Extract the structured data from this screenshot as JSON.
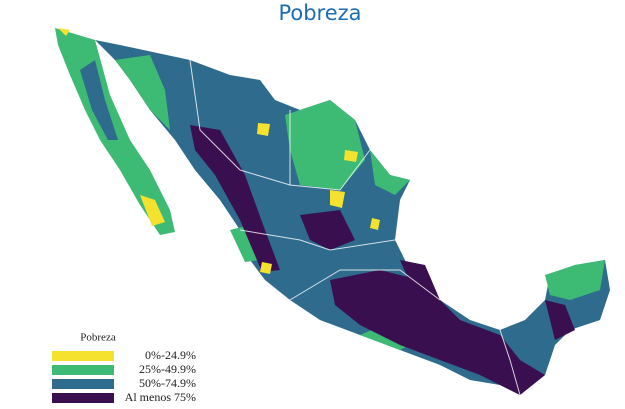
{
  "title": "Pobreza",
  "legend": {
    "title": "Pobreza",
    "items": [
      {
        "label": "0%-24.9%",
        "color": "#f4e22f"
      },
      {
        "label": "25%-49.9%",
        "color": "#3dbb74"
      },
      {
        "label": "50%-74.9%",
        "color": "#2e6b8c"
      },
      {
        "label": "Al menos 75%",
        "color": "#3a0f50"
      }
    ]
  }
}
